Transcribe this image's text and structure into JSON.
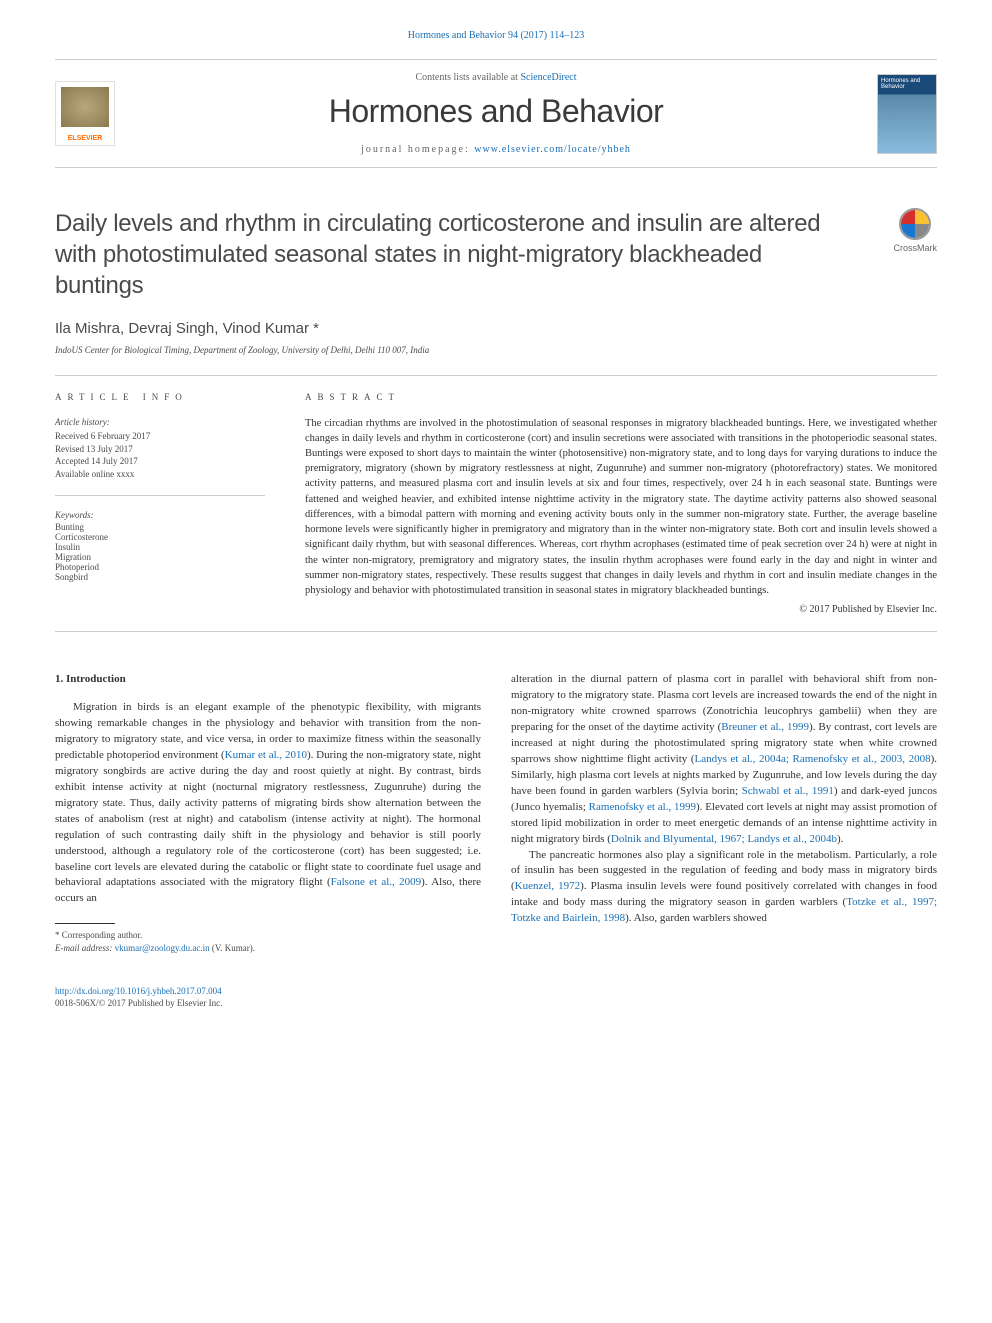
{
  "header": {
    "citation_link": "Hormones and Behavior 94 (2017) 114–123",
    "scidirect_prefix": "Contents lists available at ",
    "scidirect_link": "ScienceDirect",
    "journal_name": "Hormones and Behavior",
    "homepage_prefix": "journal homepage: ",
    "homepage_link": "www.elsevier.com/locate/yhbeh",
    "publisher_logo": "ELSEVIER",
    "cover_label": "Hormones and Behavior"
  },
  "crossmark_label": "CrossMark",
  "article": {
    "title": "Daily levels and rhythm in circulating corticosterone and insulin are altered with photostimulated seasonal states in night-migratory blackheaded buntings",
    "authors": "Ila Mishra, Devraj Singh, Vinod Kumar *",
    "affiliation": "IndoUS Center for Biological Timing, Department of Zoology, University of Delhi, Delhi 110 007, India"
  },
  "meta": {
    "info_heading": "ARTICLE INFO",
    "history_heading": "Article history:",
    "history": {
      "received": "Received 6 February 2017",
      "revised": "Revised 13 July 2017",
      "accepted": "Accepted 14 July 2017",
      "online": "Available online xxxx"
    },
    "keywords_heading": "Keywords:",
    "keywords": [
      "Bunting",
      "Corticosterone",
      "Insulin",
      "Migration",
      "Photoperiod",
      "Songbird"
    ]
  },
  "abstract": {
    "heading": "ABSTRACT",
    "text": "The circadian rhythms are involved in the photostimulation of seasonal responses in migratory blackheaded buntings. Here, we investigated whether changes in daily levels and rhythm in corticosterone (cort) and insulin secretions were associated with transitions in the photoperiodic seasonal states. Buntings were exposed to short days to maintain the winter (photosensitive) non-migratory state, and to long days for varying durations to induce the premigratory, migratory (shown by migratory restlessness at night, Zugunruhe) and summer non-migratory (photorefractory) states. We monitored activity patterns, and measured plasma cort and insulin levels at six and four times, respectively, over 24 h in each seasonal state. Buntings were fattened and weighed heavier, and exhibited intense nighttime activity in the migratory state. The daytime activity patterns also showed seasonal differences, with a bimodal pattern with morning and evening activity bouts only in the summer non-migratory state. Further, the average baseline hormone levels were significantly higher in premigratory and migratory than in the winter non-migratory state. Both cort and insulin levels showed a significant daily rhythm, but with seasonal differences. Whereas, cort rhythm acrophases (estimated time of peak secretion over 24 h) were at night in the winter non-migratory, premigratory and migratory states, the insulin rhythm acrophases were found early in the day and night in winter and summer non-migratory states, respectively. These results suggest that changes in daily levels and rhythm in cort and insulin mediate changes in the physiology and behavior with photostimulated transition in seasonal states in migratory blackheaded buntings.",
    "copyright": "© 2017 Published by Elsevier Inc."
  },
  "body": {
    "section_heading": "1. Introduction",
    "col1_p1a": "Migration in birds is an elegant example of the phenotypic flexibility, with migrants showing remarkable changes in the physiology and behavior with transition from the non-migratory to migratory state, and vice versa, in order to maximize fitness within the seasonally predictable photoperiod environment (",
    "col1_p1_ref1": "Kumar et al., 2010",
    "col1_p1b": "). During the non-migratory state, night migratory songbirds are active during the day and roost quietly at night. By contrast, birds exhibit intense activity at night (nocturnal migratory restlessness, Zugunruhe) during the migratory state. Thus, daily activity patterns of migrating birds show alternation between the states of anabolism (rest at night) and catabolism (intense activity at night). The hormonal regulation of such contrasting daily shift in the physiology and behavior is still poorly understood, although a regulatory role of the corticosterone (cort) has been suggested; i.e. baseline cort levels are elevated during the catabolic or flight state to coordinate fuel usage and behavioral adaptations associated with the migratory flight (",
    "col1_p1_ref2": "Falsone et al., 2009",
    "col1_p1c": "). Also, there occurs an",
    "col2_p1a": "alteration in the diurnal pattern of plasma cort in parallel with behavioral shift from non-migratory to the migratory state. Plasma cort levels are increased towards the end of the night in non-migratory white crowned sparrows (Zonotrichia leucophrys gambelii) when they are preparing for the onset of the daytime activity (",
    "col2_p1_ref1": "Breuner et al., 1999",
    "col2_p1b": "). By contrast, cort levels are increased at night during the photostimulated spring migratory state when white crowned sparrows show nighttime flight activity (",
    "col2_p1_ref2": "Landys et al., 2004a; Ramenofsky et al., 2003, 2008",
    "col2_p1c": "). Similarly, high plasma cort levels at nights marked by Zugunruhe, and low levels during the day have been found in garden warblers (Sylvia borin; ",
    "col2_p1_ref3": "Schwabl et al., 1991",
    "col2_p1d": ") and dark-eyed juncos (Junco hyemalis; ",
    "col2_p1_ref4": "Ramenofsky et al., 1999",
    "col2_p1e": "). Elevated cort levels at night may assist promotion of stored lipid mobilization in order to meet energetic demands of an intense nighttime activity in night migratory birds (",
    "col2_p1_ref5": "Dolnik and Blyumental, 1967; Landys et al., 2004b",
    "col2_p1f": ").",
    "col2_p2a": "The pancreatic hormones also play a significant role in the metabolism. Particularly, a role of insulin has been suggested in the regulation of feeding and body mass in migratory birds (",
    "col2_p2_ref1": "Kuenzel, 1972",
    "col2_p2b": "). Plasma insulin levels were found positively correlated with changes in food intake and body mass during the migratory season in garden warblers (",
    "col2_p2_ref2": "Totzke et al., 1997; Totzke and Bairlein, 1998",
    "col2_p2c": "). Also, garden warblers showed"
  },
  "footnote": {
    "corr_label": "* Corresponding author.",
    "email_label": "E-mail address:",
    "email": "vkumar@zoology.du.ac.in",
    "email_name": "(V. Kumar)."
  },
  "bottom": {
    "doi": "http://dx.doi.org/10.1016/j.yhbeh.2017.07.004",
    "issn": "0018-506X/© 2017 Published by Elsevier Inc."
  }
}
